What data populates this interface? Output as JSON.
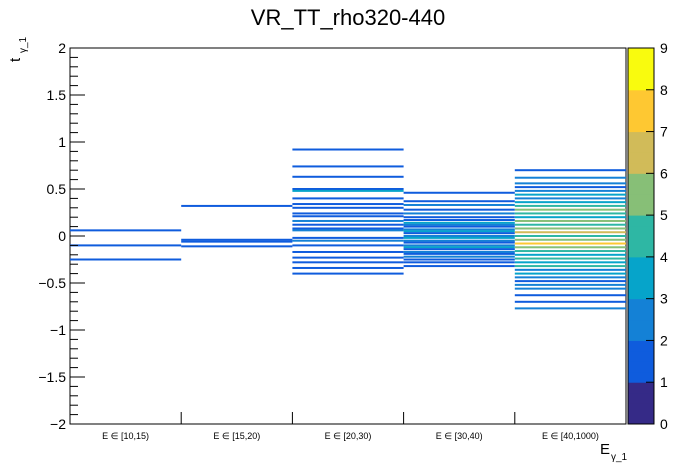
{
  "chart_data": {
    "type": "heatmap",
    "title": "VR_TT_rho320-440",
    "xlabel": {
      "main": "E",
      "sub": "γ_1"
    },
    "ylabel": {
      "main": "t",
      "sub": "γ_1"
    },
    "ylim": [
      -2,
      2
    ],
    "yticks": [
      -2,
      -1.5,
      -1,
      -0.5,
      0,
      0.5,
      1,
      1.5,
      2
    ],
    "ytick_labels": [
      "−2",
      "−1.5",
      "−1",
      "−0.5",
      "0",
      "0.5",
      "1",
      "1.5",
      "2"
    ],
    "categories": [
      "E ∈ [10,15)",
      "E ∈ [15,20)",
      "E ∈ [20,30)",
      "E ∈ [30,40)",
      "E ∈ [40,1000)"
    ],
    "zlim": [
      0,
      9
    ],
    "zticks": [
      0,
      1,
      2,
      3,
      4,
      5,
      6,
      7,
      8,
      9
    ],
    "palette": [
      "#352a87",
      "#0f5cdd",
      "#1481d6",
      "#06a4ca",
      "#2eb7a4",
      "#87bf77",
      "#d1bb59",
      "#fec832",
      "#f9fb0e"
    ],
    "bins": [
      {
        "cat": 0,
        "y": 0.06,
        "z": 1
      },
      {
        "cat": 0,
        "y": -0.1,
        "z": 1
      },
      {
        "cat": 0,
        "y": -0.25,
        "z": 1
      },
      {
        "cat": 1,
        "y": 0.32,
        "z": 1
      },
      {
        "cat": 1,
        "y": -0.04,
        "z": 1
      },
      {
        "cat": 1,
        "y": -0.06,
        "z": 1
      },
      {
        "cat": 1,
        "y": -0.11,
        "z": 1
      },
      {
        "cat": 2,
        "y": 0.92,
        "z": 1
      },
      {
        "cat": 2,
        "y": 0.74,
        "z": 1
      },
      {
        "cat": 2,
        "y": 0.63,
        "z": 1
      },
      {
        "cat": 2,
        "y": 0.5,
        "z": 1
      },
      {
        "cat": 2,
        "y": 0.48,
        "z": 3
      },
      {
        "cat": 2,
        "y": 0.4,
        "z": 1
      },
      {
        "cat": 2,
        "y": 0.34,
        "z": 1
      },
      {
        "cat": 2,
        "y": 0.3,
        "z": 1
      },
      {
        "cat": 2,
        "y": 0.24,
        "z": 1
      },
      {
        "cat": 2,
        "y": 0.21,
        "z": 1
      },
      {
        "cat": 2,
        "y": 0.16,
        "z": 2
      },
      {
        "cat": 2,
        "y": 0.12,
        "z": 1
      },
      {
        "cat": 2,
        "y": 0.08,
        "z": 1
      },
      {
        "cat": 2,
        "y": 0.06,
        "z": 2
      },
      {
        "cat": 2,
        "y": -0.02,
        "z": 1
      },
      {
        "cat": 2,
        "y": -0.05,
        "z": 2
      },
      {
        "cat": 2,
        "y": -0.1,
        "z": 1
      },
      {
        "cat": 2,
        "y": -0.17,
        "z": 1
      },
      {
        "cat": 2,
        "y": -0.23,
        "z": 1
      },
      {
        "cat": 2,
        "y": -0.28,
        "z": 1
      },
      {
        "cat": 2,
        "y": -0.34,
        "z": 1
      },
      {
        "cat": 2,
        "y": -0.4,
        "z": 1
      },
      {
        "cat": 3,
        "y": 0.46,
        "z": 1
      },
      {
        "cat": 3,
        "y": 0.37,
        "z": 1
      },
      {
        "cat": 3,
        "y": 0.33,
        "z": 2
      },
      {
        "cat": 3,
        "y": 0.28,
        "z": 1
      },
      {
        "cat": 3,
        "y": 0.24,
        "z": 2
      },
      {
        "cat": 3,
        "y": 0.2,
        "z": 1
      },
      {
        "cat": 3,
        "y": 0.17,
        "z": 1
      },
      {
        "cat": 3,
        "y": 0.14,
        "z": 3
      },
      {
        "cat": 3,
        "y": 0.12,
        "z": 2
      },
      {
        "cat": 3,
        "y": 0.1,
        "z": 1
      },
      {
        "cat": 3,
        "y": 0.07,
        "z": 2
      },
      {
        "cat": 3,
        "y": 0.05,
        "z": 3
      },
      {
        "cat": 3,
        "y": 0.03,
        "z": 1
      },
      {
        "cat": 3,
        "y": 0.0,
        "z": 2
      },
      {
        "cat": 3,
        "y": -0.02,
        "z": 3
      },
      {
        "cat": 3,
        "y": -0.05,
        "z": 2
      },
      {
        "cat": 3,
        "y": -0.07,
        "z": 1
      },
      {
        "cat": 3,
        "y": -0.1,
        "z": 2
      },
      {
        "cat": 3,
        "y": -0.12,
        "z": 3
      },
      {
        "cat": 3,
        "y": -0.14,
        "z": 1
      },
      {
        "cat": 3,
        "y": -0.17,
        "z": 2
      },
      {
        "cat": 3,
        "y": -0.19,
        "z": 1
      },
      {
        "cat": 3,
        "y": -0.22,
        "z": 2
      },
      {
        "cat": 3,
        "y": -0.25,
        "z": 1
      },
      {
        "cat": 3,
        "y": -0.28,
        "z": 1
      },
      {
        "cat": 3,
        "y": -0.32,
        "z": 1
      },
      {
        "cat": 4,
        "y": 0.7,
        "z": 1
      },
      {
        "cat": 4,
        "y": 0.62,
        "z": 2
      },
      {
        "cat": 4,
        "y": 0.56,
        "z": 2
      },
      {
        "cat": 4,
        "y": 0.52,
        "z": 1
      },
      {
        "cat": 4,
        "y": 0.48,
        "z": 2
      },
      {
        "cat": 4,
        "y": 0.44,
        "z": 3
      },
      {
        "cat": 4,
        "y": 0.4,
        "z": 2
      },
      {
        "cat": 4,
        "y": 0.36,
        "z": 3
      },
      {
        "cat": 4,
        "y": 0.32,
        "z": 4
      },
      {
        "cat": 4,
        "y": 0.28,
        "z": 5
      },
      {
        "cat": 4,
        "y": 0.24,
        "z": 4
      },
      {
        "cat": 4,
        "y": 0.2,
        "z": 3
      },
      {
        "cat": 4,
        "y": 0.16,
        "z": 5
      },
      {
        "cat": 4,
        "y": 0.12,
        "z": 4
      },
      {
        "cat": 4,
        "y": 0.08,
        "z": 5
      },
      {
        "cat": 4,
        "y": 0.04,
        "z": 6
      },
      {
        "cat": 4,
        "y": 0.0,
        "z": 4
      },
      {
        "cat": 4,
        "y": -0.04,
        "z": 5
      },
      {
        "cat": 4,
        "y": -0.08,
        "z": 7
      },
      {
        "cat": 4,
        "y": -0.12,
        "z": 5
      },
      {
        "cat": 4,
        "y": -0.16,
        "z": 4
      },
      {
        "cat": 4,
        "y": -0.2,
        "z": 3
      },
      {
        "cat": 4,
        "y": -0.24,
        "z": 4
      },
      {
        "cat": 4,
        "y": -0.28,
        "z": 3
      },
      {
        "cat": 4,
        "y": -0.32,
        "z": 4
      },
      {
        "cat": 4,
        "y": -0.36,
        "z": 2
      },
      {
        "cat": 4,
        "y": -0.4,
        "z": 3
      },
      {
        "cat": 4,
        "y": -0.44,
        "z": 2
      },
      {
        "cat": 4,
        "y": -0.48,
        "z": 1
      },
      {
        "cat": 4,
        "y": -0.52,
        "z": 2
      },
      {
        "cat": 4,
        "y": -0.56,
        "z": 2
      },
      {
        "cat": 4,
        "y": -0.63,
        "z": 1
      },
      {
        "cat": 4,
        "y": -0.7,
        "z": 1
      },
      {
        "cat": 4,
        "y": -0.77,
        "z": 2
      }
    ]
  }
}
